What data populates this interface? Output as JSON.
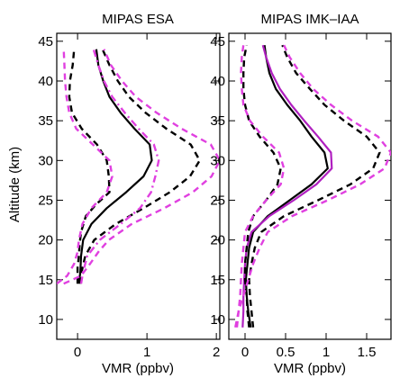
{
  "chart_data": [
    {
      "type": "line",
      "title": "MIPAS ESA",
      "xlabel": "VMR (ppbv)",
      "ylabel": "Altitude (km)",
      "xlim": [
        -0.3,
        2.05
      ],
      "ylim": [
        7.5,
        46
      ],
      "xticks": [
        0,
        1,
        2
      ],
      "xtick_labels": [
        "0",
        "1",
        "2"
      ],
      "yticks": [
        10,
        15,
        20,
        25,
        30,
        35,
        40,
        45
      ],
      "ytick_labels": [
        "10",
        "15",
        "20",
        "25",
        "30",
        "35",
        "40",
        "45"
      ],
      "grid": false,
      "series": [
        {
          "style": "solid",
          "color": "#000000",
          "points": [
            [
              0.02,
              14.5
            ],
            [
              0.04,
              16
            ],
            [
              0.05,
              18
            ],
            [
              0.08,
              20
            ],
            [
              0.2,
              22
            ],
            [
              0.42,
              24
            ],
            [
              0.7,
              26
            ],
            [
              0.95,
              28
            ],
            [
              1.07,
              30
            ],
            [
              1.04,
              32
            ],
            [
              0.82,
              34
            ],
            [
              0.62,
              36
            ],
            [
              0.46,
              38
            ],
            [
              0.37,
              40
            ],
            [
              0.3,
              42
            ],
            [
              0.27,
              44
            ]
          ]
        },
        {
          "style": "dashed",
          "color": "#000000",
          "points": [
            [
              0.0,
              14.5
            ],
            [
              0.0,
              16.5
            ],
            [
              0.02,
              18
            ],
            [
              0.03,
              19.5
            ],
            [
              0.05,
              21
            ],
            [
              0.12,
              23
            ],
            [
              0.27,
              24.5
            ],
            [
              0.46,
              26
            ],
            [
              0.45,
              28
            ],
            [
              0.42,
              30
            ],
            [
              0.28,
              32
            ],
            [
              0.06,
              34
            ],
            [
              -0.08,
              36
            ],
            [
              -0.12,
              38
            ],
            [
              -0.11,
              40
            ],
            [
              -0.07,
              42
            ],
            [
              -0.05,
              44
            ]
          ]
        },
        {
          "style": "dashed",
          "color": "#000000",
          "points": [
            [
              0.04,
              14.5
            ],
            [
              0.06,
              16
            ],
            [
              0.11,
              18
            ],
            [
              0.24,
              20
            ],
            [
              0.55,
              22
            ],
            [
              0.95,
              24
            ],
            [
              1.33,
              26
            ],
            [
              1.62,
              28
            ],
            [
              1.76,
              30
            ],
            [
              1.63,
              32
            ],
            [
              1.28,
              34
            ],
            [
              0.98,
              36
            ],
            [
              0.74,
              38
            ],
            [
              0.58,
              40
            ],
            [
              0.46,
              42
            ],
            [
              0.36,
              44
            ]
          ]
        },
        {
          "style": "dashdot",
          "color": "#e040e0",
          "points": [
            [
              0.05,
              14.5
            ],
            [
              0.08,
              16
            ],
            [
              0.14,
              18
            ],
            [
              0.32,
              20
            ],
            [
              0.62,
              22
            ],
            [
              0.9,
              24
            ],
            [
              1.06,
              26
            ],
            [
              1.12,
              28
            ],
            [
              1.17,
              30
            ],
            [
              1.1,
              32
            ],
            [
              0.88,
              34
            ],
            [
              0.68,
              36
            ],
            [
              0.5,
              38
            ],
            [
              0.38,
              40
            ],
            [
              0.3,
              42
            ],
            [
              0.23,
              44
            ]
          ]
        },
        {
          "style": "dashed",
          "color": "#e040e0",
          "points": [
            [
              -0.3,
              14.5
            ],
            [
              -0.15,
              15.5
            ],
            [
              -0.05,
              17
            ],
            [
              0.0,
              18.5
            ],
            [
              0.02,
              20
            ],
            [
              0.07,
              22
            ],
            [
              0.2,
              24
            ],
            [
              0.42,
              26
            ],
            [
              0.5,
              28
            ],
            [
              0.46,
              30
            ],
            [
              0.22,
              32
            ],
            [
              -0.02,
              34
            ],
            [
              -0.12,
              36
            ],
            [
              -0.16,
              38
            ],
            [
              -0.18,
              40
            ],
            [
              -0.19,
              42
            ],
            [
              -0.2,
              44
            ]
          ]
        },
        {
          "style": "dashed",
          "color": "#e040e0",
          "points": [
            [
              -0.2,
              14.5
            ],
            [
              0.05,
              15.5
            ],
            [
              0.18,
              17
            ],
            [
              0.3,
              18.5
            ],
            [
              0.45,
              20
            ],
            [
              0.78,
              22
            ],
            [
              1.25,
              24
            ],
            [
              1.66,
              26
            ],
            [
              1.93,
              28
            ],
            [
              2.05,
              30
            ],
            [
              1.92,
              32
            ],
            [
              1.5,
              34
            ],
            [
              1.14,
              36
            ],
            [
              0.84,
              38
            ],
            [
              0.64,
              40
            ],
            [
              0.48,
              42
            ],
            [
              0.38,
              44
            ]
          ]
        }
      ]
    },
    {
      "type": "line",
      "title": "MIPAS IMK–IAA",
      "xlabel": "VMR (ppbv)",
      "ylabel": "",
      "xlim": [
        -0.2,
        1.8
      ],
      "ylim": [
        7.5,
        46
      ],
      "xticks": [
        0,
        0.5,
        1,
        1.5
      ],
      "xtick_labels": [
        "0",
        "0.5",
        "1",
        "1.5"
      ],
      "yticks": [
        10,
        15,
        20,
        25,
        30,
        35,
        40,
        45
      ],
      "ytick_labels": [
        "10",
        "15",
        "20",
        "25",
        "30",
        "35",
        "40",
        "45"
      ],
      "grid": false,
      "series": [
        {
          "style": "solid",
          "color": "#000000",
          "points": [
            [
              0.07,
              9
            ],
            [
              0.04,
              11
            ],
            [
              0.02,
              13
            ],
            [
              0.01,
              15
            ],
            [
              0.03,
              17
            ],
            [
              0.05,
              19
            ],
            [
              0.1,
              21
            ],
            [
              0.28,
              23
            ],
            [
              0.55,
              25
            ],
            [
              0.82,
              27
            ],
            [
              1.02,
              29
            ],
            [
              0.98,
              31
            ],
            [
              0.82,
              33
            ],
            [
              0.68,
              35
            ],
            [
              0.52,
              37
            ],
            [
              0.38,
              39
            ],
            [
              0.3,
              41
            ],
            [
              0.26,
              43
            ],
            [
              0.24,
              44.5
            ]
          ]
        },
        {
          "style": "solid",
          "color": "#b020c0",
          "points": [
            [
              -0.03,
              9
            ],
            [
              -0.02,
              11
            ],
            [
              -0.02,
              13
            ],
            [
              -0.01,
              15
            ],
            [
              0.0,
              17
            ],
            [
              0.02,
              19
            ],
            [
              0.08,
              21
            ],
            [
              0.3,
              23
            ],
            [
              0.6,
              25
            ],
            [
              0.88,
              27
            ],
            [
              1.07,
              29
            ],
            [
              1.06,
              31
            ],
            [
              0.9,
              33
            ],
            [
              0.73,
              35
            ],
            [
              0.57,
              37
            ],
            [
              0.43,
              39
            ],
            [
              0.33,
              41
            ],
            [
              0.26,
              43
            ],
            [
              0.22,
              44.5
            ]
          ]
        },
        {
          "style": "dashed",
          "color": "#000000",
          "points": [
            [
              0.05,
              9
            ],
            [
              0.03,
              11
            ],
            [
              0.02,
              13
            ],
            [
              0.0,
              15
            ],
            [
              0.0,
              17
            ],
            [
              0.02,
              19
            ],
            [
              0.04,
              21
            ],
            [
              0.1,
              23
            ],
            [
              0.26,
              25
            ],
            [
              0.4,
              27
            ],
            [
              0.44,
              29
            ],
            [
              0.35,
              31
            ],
            [
              0.18,
              33
            ],
            [
              0.05,
              35
            ],
            [
              0.0,
              37
            ],
            [
              -0.02,
              39
            ],
            [
              -0.02,
              41
            ],
            [
              -0.01,
              43
            ],
            [
              0.02,
              44.5
            ]
          ]
        },
        {
          "style": "dashed",
          "color": "#000000",
          "points": [
            [
              0.1,
              9
            ],
            [
              0.08,
              11
            ],
            [
              0.06,
              13
            ],
            [
              0.05,
              15
            ],
            [
              0.08,
              17
            ],
            [
              0.12,
              19
            ],
            [
              0.2,
              21
            ],
            [
              0.48,
              23
            ],
            [
              0.9,
              25
            ],
            [
              1.3,
              27
            ],
            [
              1.58,
              29
            ],
            [
              1.66,
              31
            ],
            [
              1.5,
              33
            ],
            [
              1.22,
              35
            ],
            [
              0.98,
              37
            ],
            [
              0.8,
              39
            ],
            [
              0.63,
              41
            ],
            [
              0.52,
              43
            ],
            [
              0.46,
              44.5
            ]
          ]
        },
        {
          "style": "dashed",
          "color": "#e040e0",
          "points": [
            [
              -0.1,
              9
            ],
            [
              -0.08,
              11
            ],
            [
              -0.06,
              13
            ],
            [
              -0.05,
              15
            ],
            [
              -0.04,
              17
            ],
            [
              -0.02,
              19
            ],
            [
              0.0,
              21
            ],
            [
              0.1,
              23
            ],
            [
              0.26,
              25
            ],
            [
              0.44,
              27
            ],
            [
              0.48,
              29
            ],
            [
              0.42,
              31
            ],
            [
              0.22,
              33
            ],
            [
              0.06,
              35
            ],
            [
              -0.02,
              37
            ],
            [
              -0.04,
              39
            ],
            [
              -0.05,
              41
            ],
            [
              -0.04,
              43
            ],
            [
              -0.02,
              44.5
            ]
          ]
        },
        {
          "style": "dashed",
          "color": "#e040e0",
          "points": [
            [
              -0.12,
              9
            ],
            [
              -0.08,
              11
            ],
            [
              -0.02,
              13
            ],
            [
              0.04,
              15
            ],
            [
              0.1,
              17
            ],
            [
              0.18,
              19
            ],
            [
              0.28,
              21
            ],
            [
              0.58,
              23
            ],
            [
              1.02,
              25
            ],
            [
              1.42,
              27
            ],
            [
              1.72,
              29
            ],
            [
              1.8,
              31
            ],
            [
              1.64,
              33
            ],
            [
              1.32,
              35
            ],
            [
              1.06,
              37
            ],
            [
              0.84,
              39
            ],
            [
              0.68,
              41
            ],
            [
              0.55,
              43
            ],
            [
              0.48,
              44.5
            ]
          ]
        }
      ]
    }
  ]
}
